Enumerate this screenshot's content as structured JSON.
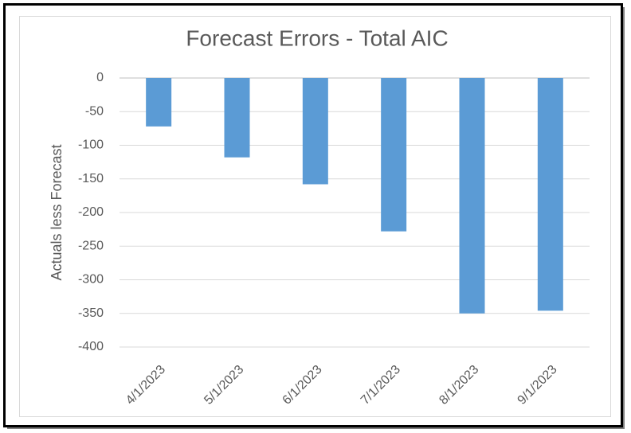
{
  "chart_data": {
    "type": "bar",
    "title": "Forecast Errors - Total AIC",
    "y_label": "Actuals less Forecast",
    "categories": [
      "4/1/2023",
      "5/1/2023",
      "6/1/2023",
      "7/1/2023",
      "8/1/2023",
      "9/1/2023"
    ],
    "values": [
      -72,
      -118,
      -158,
      -228,
      -350,
      -346
    ],
    "color": "#5b9bd5",
    "ylim": [
      -400,
      0
    ],
    "yticks": [
      0,
      -50,
      -100,
      -150,
      -200,
      -250,
      -300,
      -350,
      -400
    ],
    "grid": true
  }
}
